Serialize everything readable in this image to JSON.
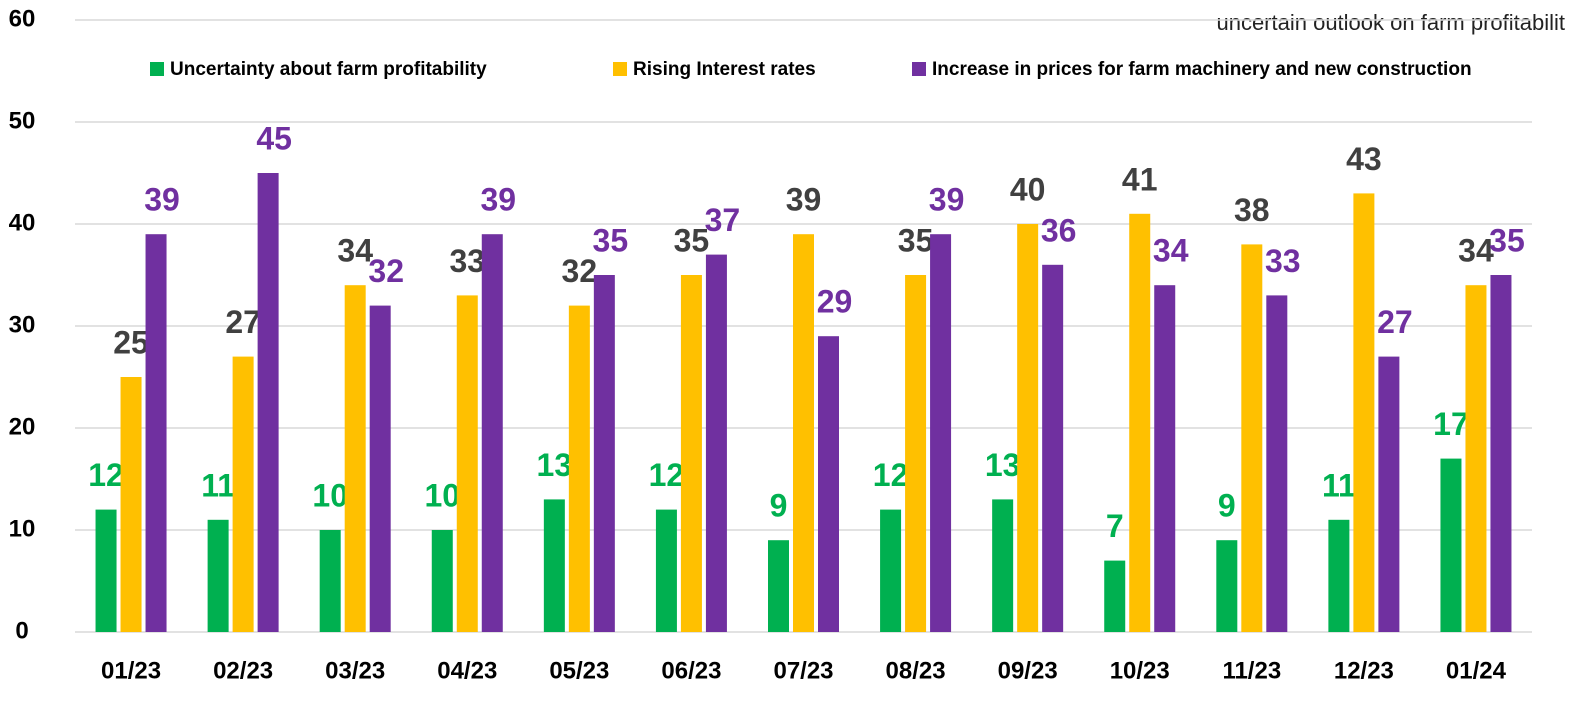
{
  "chart_data": {
    "type": "bar",
    "annotation": "uncertain outlook on farm profitabilit",
    "categories": [
      "01/23",
      "02/23",
      "03/23",
      "04/23",
      "05/23",
      "06/23",
      "07/23",
      "08/23",
      "09/23",
      "10/23",
      "11/23",
      "12/23",
      "01/24"
    ],
    "series": [
      {
        "name": "Uncertainty about farm profitability",
        "color": "#00b050",
        "label_color": "#00b050",
        "values": [
          12,
          11,
          10,
          10,
          13,
          12,
          9,
          12,
          13,
          7,
          9,
          11,
          17
        ]
      },
      {
        "name": "Rising Interest rates",
        "color": "#ffc000",
        "label_color": "#404040",
        "values": [
          25,
          27,
          34,
          33,
          32,
          35,
          39,
          35,
          40,
          41,
          38,
          43,
          34
        ]
      },
      {
        "name": "Increase in prices for farm machinery and new construction",
        "color": "#7030a0",
        "label_color": "#7030a0",
        "values": [
          39,
          45,
          32,
          39,
          35,
          37,
          29,
          39,
          36,
          34,
          33,
          27,
          35
        ]
      }
    ],
    "ylim": [
      0,
      60
    ],
    "yticks": [
      0,
      10,
      20,
      30,
      40,
      50,
      60
    ],
    "grid": true,
    "legend": "top"
  }
}
